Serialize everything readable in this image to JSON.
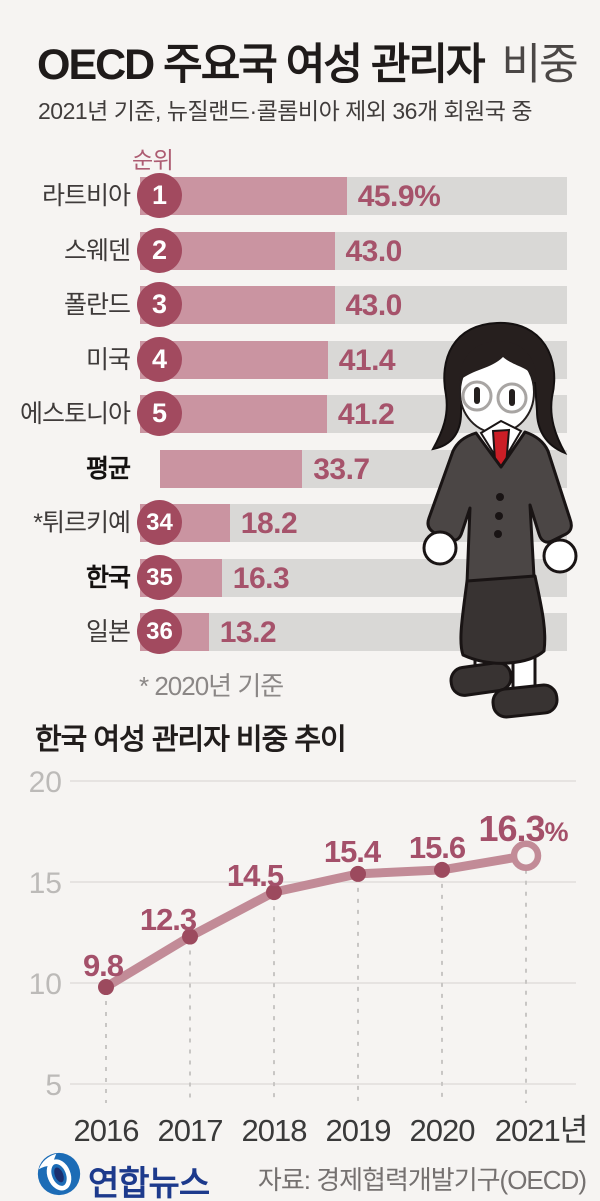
{
  "header": {
    "title_main": "OECD 주요국 여성 관리자",
    "title_light": "비중",
    "subtitle": "2021년 기준, 뉴질랜드·콜롬비아 제외 36개 회원국 중"
  },
  "ranking": {
    "rank_header": "순위",
    "footnote": "* 2020년 기준",
    "unit_first_row": "%",
    "rows": [
      {
        "label": "라트비아",
        "rank": "1",
        "value": 45.9,
        "display": "45.9%",
        "emphasis": false
      },
      {
        "label": "스웨덴",
        "rank": "2",
        "value": 43.0,
        "display": "43.0",
        "emphasis": false
      },
      {
        "label": "폴란드",
        "rank": "3",
        "value": 43.0,
        "display": "43.0",
        "emphasis": false
      },
      {
        "label": "미국",
        "rank": "4",
        "value": 41.4,
        "display": "41.4",
        "emphasis": false
      },
      {
        "label": "에스토니아",
        "rank": "5",
        "value": 41.2,
        "display": "41.2",
        "emphasis": false
      },
      {
        "label": "평균",
        "rank": null,
        "value": 33.7,
        "display": "33.7",
        "emphasis": true
      },
      {
        "label": "*튀르키예",
        "rank": "34",
        "value": 18.2,
        "display": "18.2",
        "emphasis": false
      },
      {
        "label": "한국",
        "rank": "35",
        "value": 16.3,
        "display": "16.3",
        "emphasis": true
      },
      {
        "label": "일본",
        "rank": "36",
        "value": 13.2,
        "display": "13.2",
        "emphasis": false
      }
    ]
  },
  "trend": {
    "title": "한국 여성 관리자 비중 추이"
  },
  "chart_data": [
    {
      "type": "bar",
      "title": "OECD 주요국 여성 관리자 비중",
      "subtitle": "2021년 기준, 뉴질랜드·콜롬비아 제외 36개 회원국 중",
      "categories": [
        "라트비아",
        "스웨덴",
        "폴란드",
        "미국",
        "에스토니아",
        "평균",
        "*튀르키예",
        "한국",
        "일본"
      ],
      "ranks": [
        "1",
        "2",
        "3",
        "4",
        "5",
        null,
        "34",
        "35",
        "36"
      ],
      "values": [
        45.9,
        43.0,
        43.0,
        41.4,
        41.2,
        33.7,
        18.2,
        16.3,
        13.2
      ],
      "unit": "%",
      "orientation": "horizontal",
      "note": "* 2020년 기준"
    },
    {
      "type": "line",
      "title": "한국 여성 관리자 비중 추이",
      "x": [
        "2016",
        "2017",
        "2018",
        "2019",
        "2020",
        "2021년"
      ],
      "values": [
        9.8,
        12.3,
        14.5,
        15.4,
        15.6,
        16.3
      ],
      "labels": [
        "9.8",
        "12.3",
        "14.5",
        "15.4",
        "15.6",
        "16.3"
      ],
      "last_label_suffix": "%",
      "yticks": [
        20,
        15,
        10,
        5
      ],
      "ylim": [
        3,
        21
      ],
      "grid": "horizontal",
      "legend": "none"
    }
  ],
  "figure": {
    "name": "woman-manager-illustration",
    "hair_color": "#261f1e",
    "suit_color": "#4b4645",
    "skirt_color": "#383332",
    "tie_color": "#cb1e26"
  },
  "footer": {
    "logo_text": "연합뉴스",
    "source": "자료: 경제협력개발기구(OECD)"
  },
  "colors": {
    "background": "#f6f4f2",
    "bar_track": "#d9d8d6",
    "bar_fill": "#ca94a1",
    "rank_circle": "#a24a5f",
    "value_text": "#a6536b",
    "line": "#c28b97",
    "line_dot": "#9c4a5e",
    "axis_label": "#bcbab8",
    "logo_blue": "#1c6cb6",
    "logo_navy": "#1d3a8c"
  }
}
